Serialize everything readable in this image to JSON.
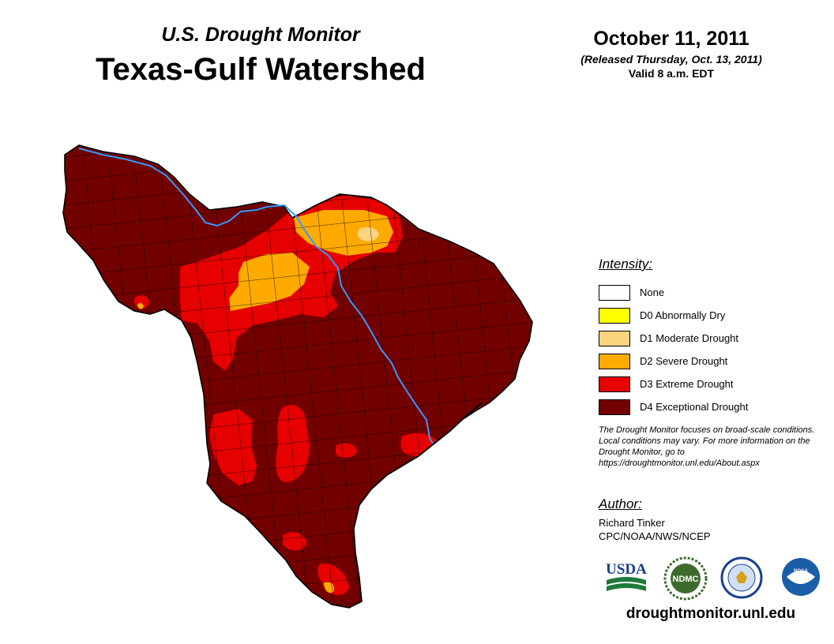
{
  "header": {
    "subtitle": "U.S. Drought Monitor",
    "title": "Texas-Gulf Watershed",
    "date": "October 11, 2011",
    "released": "(Released Thursday, Oct. 13, 2011)",
    "valid": "Valid 8 a.m. EDT"
  },
  "legend": {
    "heading": "Intensity:",
    "items": [
      {
        "label": "None",
        "color": "#ffffff"
      },
      {
        "label": "D0 Abnormally Dry",
        "color": "#ffff00"
      },
      {
        "label": "D1 Moderate Drought",
        "color": "#fcd37f"
      },
      {
        "label": "D2 Severe Drought",
        "color": "#ffaa00"
      },
      {
        "label": "D3 Extreme Drought",
        "color": "#e60000"
      },
      {
        "label": "D4 Exceptional Drought",
        "color": "#730000"
      }
    ]
  },
  "note": "The Drought Monitor focuses on broad-scale conditions. Local conditions may vary. For more information on the Drought Monitor, go to https://droughtmonitor.unl.edu/About.aspx",
  "author": {
    "heading": "Author:",
    "name": "Richard Tinker",
    "org": "CPC/NOAA/NWS/NCEP"
  },
  "logos": {
    "usda": "USDA",
    "ndmc": "NDMC",
    "noaa": "NOAA"
  },
  "website": "droughtmonitor.unl.edu",
  "colors": {
    "river": "#3399ff",
    "county_lines": "#000000"
  }
}
